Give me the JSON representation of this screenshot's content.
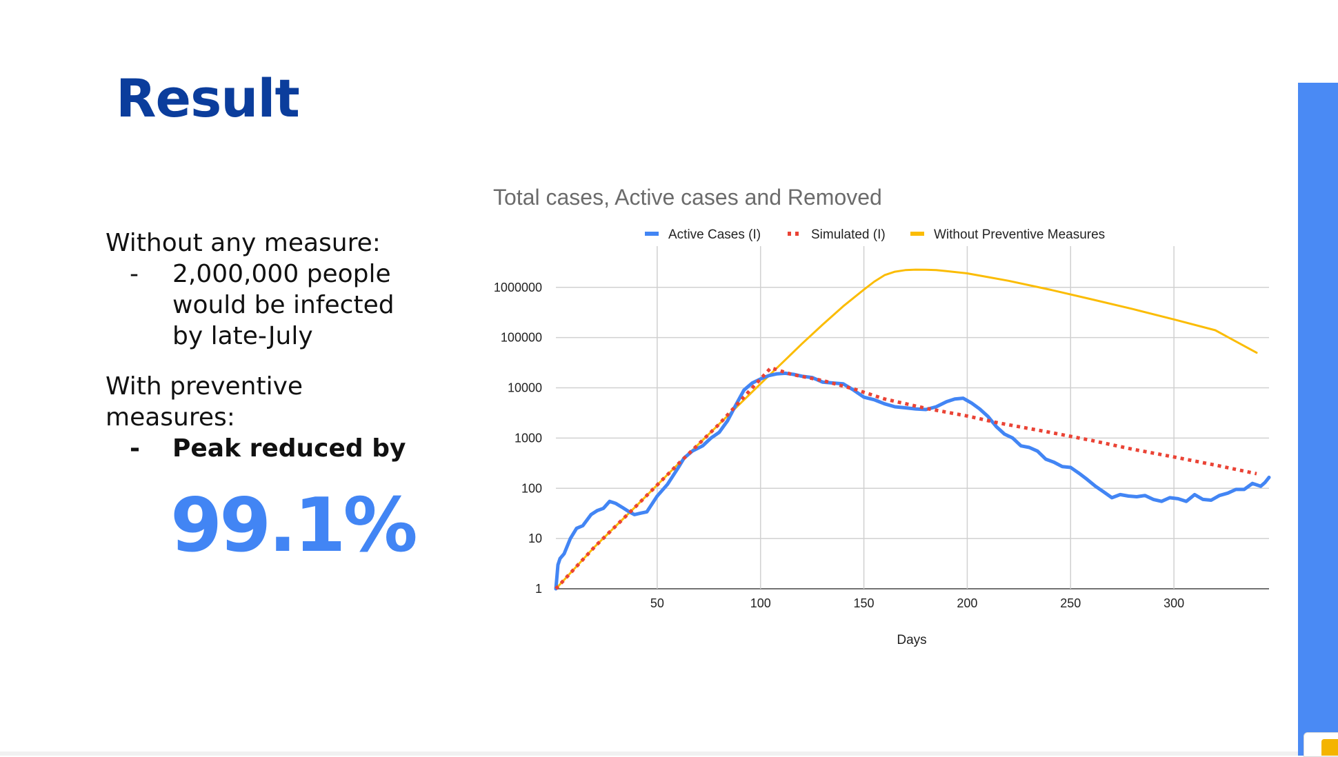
{
  "slide": {
    "title": "Result",
    "without_heading": "Without any measure:",
    "without_bullet_dash": "-",
    "without_bullet_lines": [
      "2,000,000 people",
      "would be infected",
      "by late-July"
    ],
    "with_heading_lines": [
      "With preventive",
      "measures:"
    ],
    "with_bullet_dash": "-",
    "with_bullet_text": "Peak reduced by",
    "peak_reduction": "99.1%"
  },
  "colors": {
    "title": "#0b3d9c",
    "accent": "#4285f4",
    "active": "#4285f4",
    "simulated": "#ea4335",
    "without": "#fbbc04",
    "grid": "#d0d0d0"
  },
  "chart_data": {
    "type": "line",
    "title": "Total cases, Active cases and Removed",
    "xlabel": "Days",
    "ylabel": "",
    "y_scale": "log",
    "xlim": [
      1,
      346
    ],
    "ylim": [
      1,
      3000000
    ],
    "x_ticks": [
      50,
      100,
      150,
      200,
      250,
      300
    ],
    "x_tick_labels": [
      "50",
      "100",
      "150",
      "200",
      "250",
      "300"
    ],
    "y_ticks": [
      1,
      10,
      100,
      1000,
      10000,
      100000,
      1000000
    ],
    "y_tick_labels": [
      "1",
      "10",
      "100",
      "1000",
      "10000",
      "100000",
      "1000000"
    ],
    "grid": true,
    "legend_position": "top",
    "series": [
      {
        "name": "Active Cases (I)",
        "style": "solid",
        "x": [
          1,
          2,
          3,
          5,
          8,
          11,
          14,
          18,
          21,
          24,
          27,
          30,
          33,
          36,
          39,
          42,
          45,
          50,
          55,
          60,
          63,
          67,
          72,
          76,
          80,
          84,
          88,
          92,
          96,
          100,
          104,
          108,
          112,
          116,
          120,
          125,
          130,
          135,
          140,
          145,
          150,
          155,
          160,
          165,
          170,
          175,
          180,
          185,
          190,
          194,
          198,
          202,
          206,
          210,
          214,
          218,
          222,
          226,
          230,
          234,
          238,
          242,
          246,
          250,
          254,
          258,
          262,
          266,
          270,
          274,
          278,
          282,
          286,
          290,
          294,
          298,
          302,
          306,
          310,
          314,
          318,
          322,
          326,
          330,
          334,
          338,
          342,
          344,
          346
        ],
        "y": [
          1,
          3,
          4,
          5,
          10,
          16,
          18,
          30,
          36,
          40,
          55,
          50,
          42,
          35,
          30,
          32,
          34,
          70,
          120,
          250,
          400,
          550,
          700,
          1000,
          1300,
          2200,
          4500,
          9000,
          12500,
          15000,
          17500,
          19000,
          19500,
          18500,
          17000,
          16000,
          13000,
          12500,
          12000,
          9000,
          6500,
          5800,
          4800,
          4200,
          4000,
          3800,
          3700,
          4200,
          5300,
          6000,
          6200,
          5000,
          3800,
          2700,
          1700,
          1200,
          1000,
          700,
          650,
          550,
          380,
          330,
          270,
          260,
          200,
          150,
          110,
          85,
          65,
          75,
          70,
          68,
          72,
          60,
          55,
          65,
          62,
          55,
          75,
          60,
          58,
          72,
          80,
          95,
          95,
          125,
          110,
          130,
          165
        ]
      },
      {
        "name": "Simulated (I)",
        "style": "dotted",
        "x": [
          1,
          20,
          40,
          60,
          80,
          95,
          105,
          115,
          130,
          145,
          160,
          180,
          200,
          215,
          240,
          260,
          280,
          300,
          320,
          340
        ],
        "y": [
          1,
          7,
          45,
          300,
          1900,
          9000,
          25000,
          18500,
          14000,
          9500,
          6000,
          3900,
          2750,
          2000,
          1300,
          900,
          600,
          420,
          290,
          195
        ]
      },
      {
        "name": "Without Preventive Measures",
        "style": "solid",
        "x": [
          1,
          20,
          40,
          60,
          80,
          100,
          110,
          120,
          130,
          140,
          150,
          155,
          160,
          165,
          170,
          175,
          180,
          185,
          190,
          200,
          210,
          220,
          240,
          260,
          280,
          300,
          320,
          340
        ],
        "y": [
          1,
          7,
          45,
          300,
          1900,
          12000,
          30000,
          75000,
          180000,
          420000,
          900000,
          1300000,
          1750000,
          2050000,
          2200000,
          2250000,
          2240000,
          2200000,
          2100000,
          1900000,
          1600000,
          1350000,
          900000,
          580000,
          370000,
          230000,
          140000,
          50000
        ]
      }
    ]
  }
}
